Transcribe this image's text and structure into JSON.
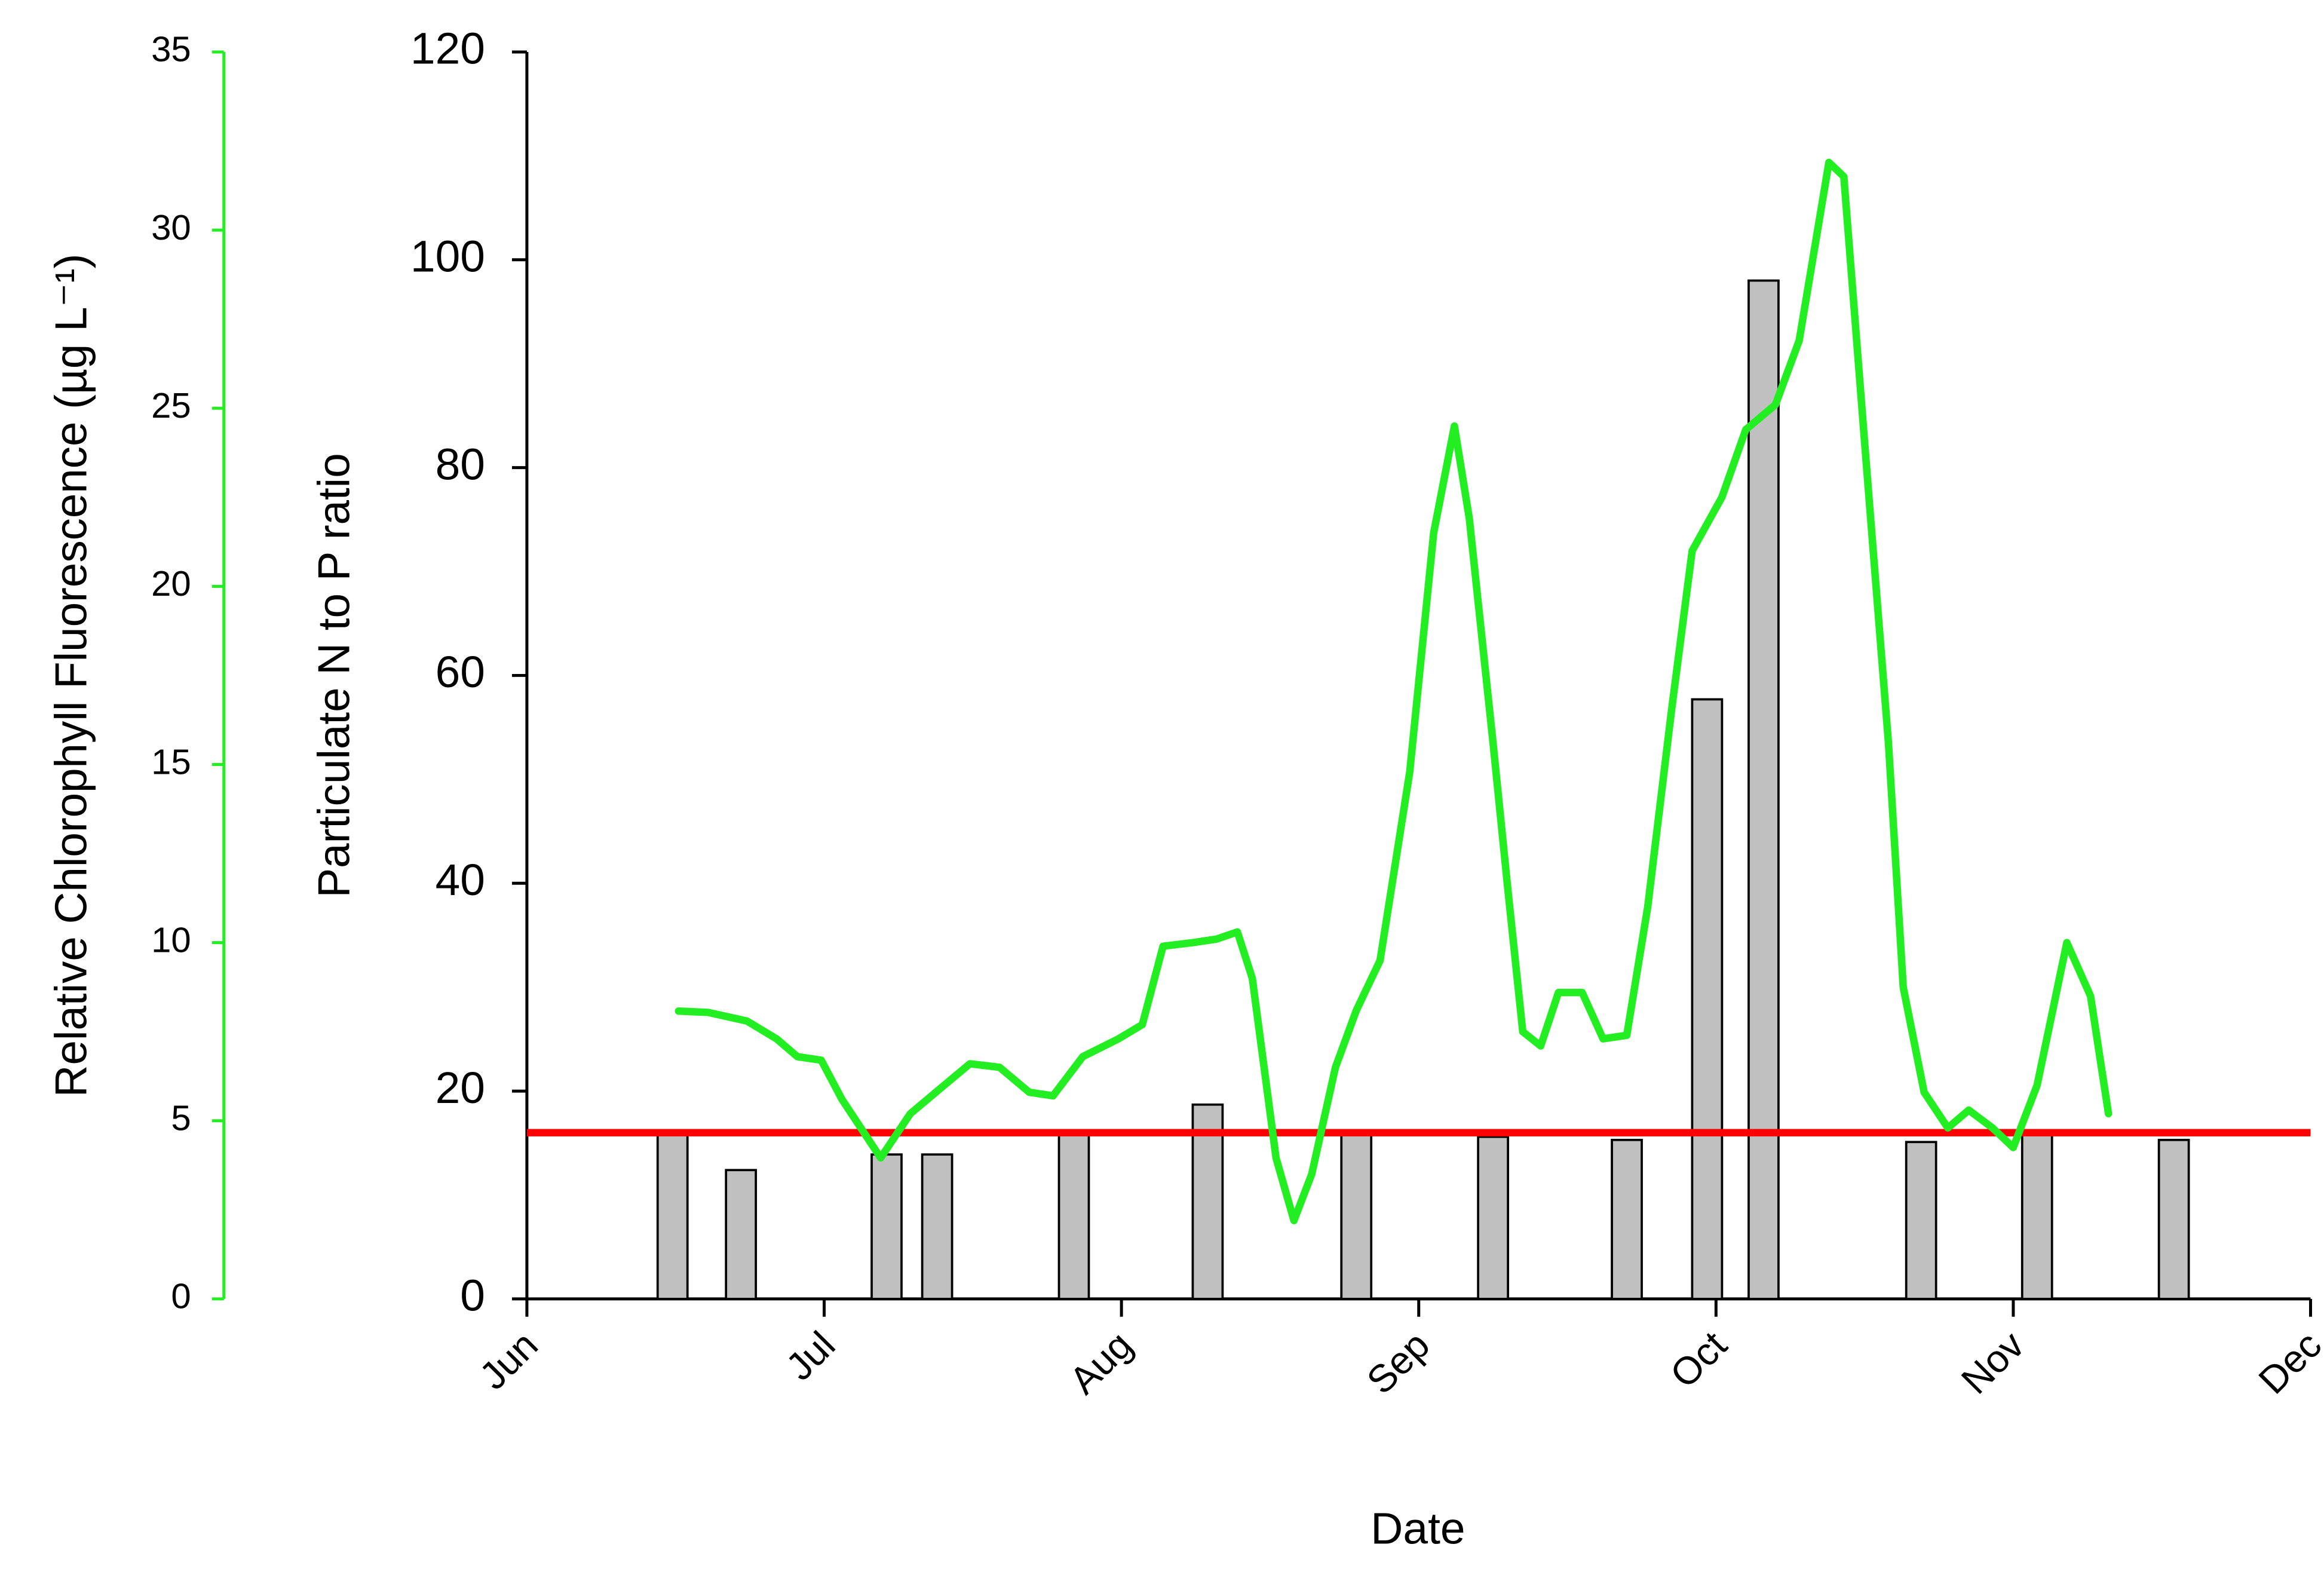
{
  "chart_data": {
    "type": "bar",
    "x_label": "Date",
    "y_label": "Particulate N to P ratio",
    "y2_label": "Relative Chlorophyll Fluorescence (µg L⁻¹)",
    "xlim": [
      0,
      6
    ],
    "xticks": [
      {
        "value": 0,
        "label": "Jun"
      },
      {
        "value": 1,
        "label": "Jul"
      },
      {
        "value": 2,
        "label": "Aug"
      },
      {
        "value": 3,
        "label": "Sep"
      },
      {
        "value": 4,
        "label": "Oct"
      },
      {
        "value": 5,
        "label": "Nov"
      },
      {
        "value": 6,
        "label": "Dec"
      }
    ],
    "ylim": [
      0,
      120
    ],
    "yticks": [
      0,
      20,
      40,
      60,
      80,
      100,
      120
    ],
    "y2lim": [
      0,
      35
    ],
    "y2ticks": [
      0,
      5,
      10,
      15,
      20,
      25,
      30,
      35
    ],
    "y2_color": "#22ee22",
    "hlines": [
      {
        "value": 16,
        "color": "#ff0000"
      }
    ],
    "series": [
      {
        "type": "bar",
        "color": "#c0c0c0",
        "x": [
          0.49,
          0.72,
          1.21,
          1.38,
          1.84,
          2.29,
          2.79,
          3.25,
          3.7,
          3.97,
          4.16,
          4.69,
          5.08,
          5.54
        ],
        "values": [
          16.1,
          12.4,
          13.9,
          13.9,
          16.1,
          18.7,
          16.1,
          15.6,
          15.3,
          57.7,
          98,
          15.1,
          16.1,
          15.3
        ]
      },
      {
        "type": "line",
        "axis": "y2",
        "color": "#22ee22",
        "x": [
          0.51,
          0.61,
          0.74,
          0.84,
          0.91,
          0.99,
          1.06,
          1.19,
          1.29,
          1.39,
          1.49,
          1.59,
          1.69,
          1.77,
          1.87,
          1.99,
          2.07,
          2.14,
          2.24,
          2.32,
          2.39,
          2.44,
          2.52,
          2.58,
          2.64,
          2.72,
          2.79,
          2.87,
          2.97,
          3.05,
          3.12,
          3.17,
          3.25,
          3.3,
          3.35,
          3.41,
          3.47,
          3.55,
          3.62,
          3.7,
          3.77,
          3.85,
          3.92,
          4.02,
          4.1,
          4.2,
          4.28,
          4.38,
          4.43,
          4.5,
          4.58,
          4.63,
          4.7,
          4.78,
          4.85,
          4.93,
          5.0,
          5.08,
          5.18,
          5.26,
          5.32
        ],
        "values": [
          8.08,
          8.04,
          7.8,
          7.3,
          6.8,
          6.7,
          5.6,
          3.96,
          5.2,
          5.9,
          6.6,
          6.5,
          5.8,
          5.7,
          6.8,
          7.3,
          7.7,
          9.9,
          10.0,
          10.1,
          10.3,
          9.0,
          3.96,
          2.2,
          3.5,
          6.5,
          8.1,
          9.5,
          14.8,
          21.5,
          24.5,
          21.9,
          15.6,
          11.5,
          7.5,
          7.1,
          8.6,
          8.6,
          7.3,
          7.4,
          11.0,
          16.5,
          21.0,
          22.5,
          24.4,
          25.1,
          26.9,
          31.9,
          31.5,
          24.0,
          15.6,
          8.75,
          5.8,
          4.8,
          5.3,
          4.8,
          4.25,
          6.0,
          10.0,
          8.5,
          5.2
        ]
      }
    ]
  }
}
